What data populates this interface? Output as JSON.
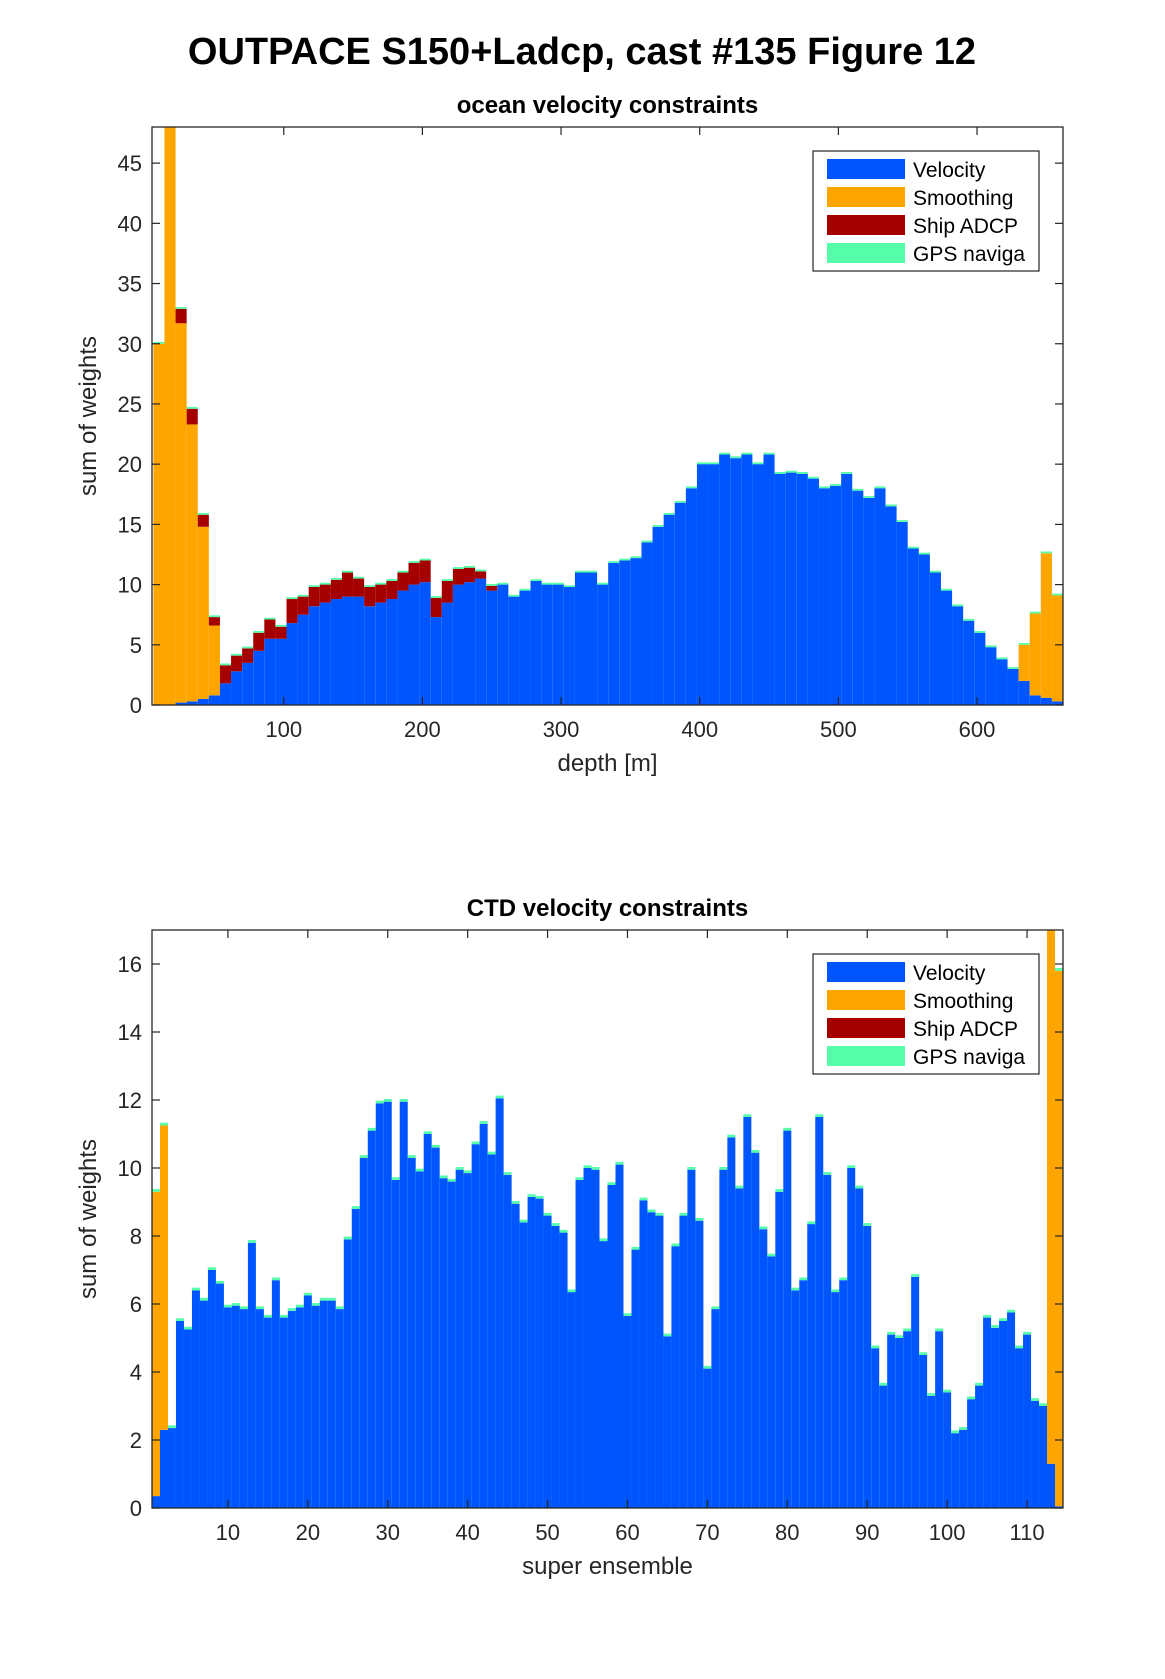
{
  "figure_title": "OUTPACE S150+Ladcp, cast #135  Figure 12",
  "colors": {
    "velocity": "#0055FF",
    "smoothing": "#FFA500",
    "ship_adcp": "#A50000",
    "gps": "#55FFAA"
  },
  "chart_data": [
    {
      "type": "bar",
      "stacked": true,
      "title": "ocean velocity constraints",
      "xlabel": "depth [m]",
      "ylabel": "sum of weights",
      "xlim": [
        5,
        662
      ],
      "ylim": [
        0,
        48
      ],
      "xticks": [
        100,
        200,
        300,
        400,
        500,
        600
      ],
      "yticks": [
        0,
        5,
        10,
        15,
        20,
        25,
        30,
        35,
        40,
        45
      ],
      "bin_width": 8,
      "grid": false,
      "legend_position": "top-right",
      "legend": [
        "Velocity",
        "Smoothing",
        "Ship ADCP",
        "GPS naviga"
      ],
      "x": [
        10,
        18,
        26,
        34,
        42,
        50,
        58,
        66,
        74,
        82,
        90,
        98,
        106,
        114,
        122,
        130,
        138,
        146,
        154,
        162,
        170,
        178,
        186,
        194,
        202,
        210,
        218,
        226,
        234,
        242,
        250,
        258,
        266,
        274,
        282,
        290,
        298,
        306,
        314,
        322,
        330,
        338,
        346,
        354,
        362,
        370,
        378,
        386,
        394,
        402,
        410,
        418,
        426,
        434,
        442,
        450,
        458,
        466,
        474,
        482,
        490,
        498,
        506,
        514,
        522,
        530,
        538,
        546,
        554,
        562,
        570,
        578,
        586,
        594,
        602,
        610,
        618,
        626,
        634,
        642,
        650,
        658
      ],
      "series": [
        {
          "name": "Velocity",
          "values": [
            0,
            0,
            0.2,
            0.3,
            0.5,
            0.8,
            1.8,
            2.8,
            3.5,
            4.5,
            5.5,
            5.5,
            6.8,
            7.5,
            8.2,
            8.5,
            8.8,
            9.0,
            9.0,
            8.2,
            8.5,
            8.8,
            9.5,
            10.0,
            10.2,
            7.3,
            8.5,
            10.0,
            10.2,
            10.5,
            9.5,
            10.0,
            9.0,
            9.5,
            10.3,
            10.0,
            10.0,
            9.8,
            11.0,
            11.0,
            10.0,
            11.8,
            12.0,
            12.2,
            13.5,
            14.8,
            15.8,
            16.8,
            18.0,
            20.0,
            20.0,
            20.8,
            20.5,
            20.8,
            20.0,
            20.8,
            19.2,
            19.3,
            19.2,
            18.8,
            18.0,
            18.2,
            19.2,
            17.8,
            17.2,
            18.0,
            16.5,
            15.2,
            13.0,
            12.5,
            11.0,
            9.5,
            8.2,
            7.0,
            6.0,
            4.8,
            3.8,
            3.0,
            2.0,
            0.8,
            0.6,
            0.3
          ]
        },
        {
          "name": "Smoothing",
          "values": [
            30.0,
            48.0,
            31.5,
            23.0,
            14.3,
            5.8,
            0,
            0,
            0,
            0,
            0,
            0,
            0,
            0,
            0,
            0,
            0,
            0,
            0,
            0,
            0,
            0,
            0,
            0,
            0,
            0,
            0,
            0,
            0,
            0,
            0,
            0,
            0,
            0,
            0,
            0,
            0,
            0,
            0,
            0,
            0,
            0,
            0,
            0,
            0,
            0,
            0,
            0,
            0,
            0,
            0,
            0,
            0,
            0,
            0,
            0,
            0,
            0,
            0,
            0,
            0,
            0,
            0,
            0,
            0,
            0,
            0,
            0,
            0,
            0,
            0,
            0,
            0,
            0,
            0,
            0,
            0,
            0,
            3.0,
            6.8,
            12.0,
            8.8
          ]
        },
        {
          "name": "Ship ADCP",
          "values": [
            0,
            0,
            1.2,
            1.3,
            1.0,
            0.7,
            1.5,
            1.3,
            1.2,
            1.5,
            1.6,
            1.0,
            2.0,
            1.5,
            1.6,
            1.5,
            1.6,
            2.0,
            1.5,
            1.6,
            1.5,
            1.5,
            1.5,
            1.8,
            1.8,
            1.6,
            1.8,
            1.3,
            1.2,
            0.6,
            0.4,
            0,
            0,
            0,
            0,
            0,
            0,
            0,
            0,
            0,
            0,
            0,
            0,
            0,
            0,
            0,
            0,
            0,
            0,
            0,
            0,
            0,
            0,
            0,
            0,
            0,
            0,
            0,
            0,
            0,
            0,
            0,
            0,
            0,
            0,
            0,
            0,
            0,
            0,
            0,
            0,
            0,
            0,
            0,
            0,
            0,
            0,
            0,
            0,
            0,
            0,
            0
          ]
        },
        {
          "name": "GPS naviga",
          "values": [
            0.15,
            0.15,
            0.15,
            0.15,
            0.15,
            0.15,
            0.15,
            0.15,
            0.15,
            0.15,
            0.15,
            0.15,
            0.15,
            0.15,
            0.15,
            0.15,
            0.15,
            0.15,
            0.15,
            0.15,
            0.15,
            0.15,
            0.15,
            0.15,
            0.15,
            0.15,
            0.15,
            0.15,
            0.15,
            0.15,
            0.15,
            0.15,
            0.15,
            0.15,
            0.15,
            0.15,
            0.15,
            0.15,
            0.15,
            0.15,
            0.15,
            0.15,
            0.15,
            0.15,
            0.15,
            0.15,
            0.15,
            0.15,
            0.15,
            0.15,
            0.15,
            0.15,
            0.15,
            0.15,
            0.15,
            0.15,
            0.15,
            0.15,
            0.15,
            0.15,
            0.15,
            0.15,
            0.15,
            0.15,
            0.15,
            0.15,
            0.15,
            0.15,
            0.15,
            0.15,
            0.15,
            0.15,
            0.15,
            0.15,
            0.15,
            0.15,
            0.15,
            0.15,
            0.15,
            0.15,
            0.15,
            0.15
          ]
        }
      ]
    },
    {
      "type": "bar",
      "stacked": true,
      "title": "CTD velocity constraints",
      "xlabel": "super ensemble",
      "ylabel": "sum of weights",
      "xlim": [
        0.5,
        114.5
      ],
      "ylim": [
        0,
        17
      ],
      "xticks": [
        10,
        20,
        30,
        40,
        50,
        60,
        70,
        80,
        90,
        100,
        110
      ],
      "yticks": [
        0,
        2,
        4,
        6,
        8,
        10,
        12,
        14,
        16
      ],
      "bin_width": 1,
      "grid": false,
      "legend_position": "top-right",
      "legend": [
        "Velocity",
        "Smoothing",
        "Ship ADCP",
        "GPS naviga"
      ],
      "x": [
        1,
        2,
        3,
        4,
        5,
        6,
        7,
        8,
        9,
        10,
        11,
        12,
        13,
        14,
        15,
        16,
        17,
        18,
        19,
        20,
        21,
        22,
        23,
        24,
        25,
        26,
        27,
        28,
        29,
        30,
        31,
        32,
        33,
        34,
        35,
        36,
        37,
        38,
        39,
        40,
        41,
        42,
        43,
        44,
        45,
        46,
        47,
        48,
        49,
        50,
        51,
        52,
        53,
        54,
        55,
        56,
        57,
        58,
        59,
        60,
        61,
        62,
        63,
        64,
        65,
        66,
        67,
        68,
        69,
        70,
        71,
        72,
        73,
        74,
        75,
        76,
        77,
        78,
        79,
        80,
        81,
        82,
        83,
        84,
        85,
        86,
        87,
        88,
        89,
        90,
        91,
        92,
        93,
        94,
        95,
        96,
        97,
        98,
        99,
        100,
        101,
        102,
        103,
        104,
        105,
        106,
        107,
        108,
        109,
        110,
        111,
        112,
        113,
        114
      ],
      "series": [
        {
          "name": "Velocity",
          "values": [
            0.35,
            2.3,
            2.35,
            5.5,
            5.25,
            6.4,
            6.1,
            7.0,
            6.6,
            5.9,
            5.95,
            5.85,
            7.8,
            5.85,
            5.6,
            6.7,
            5.6,
            5.8,
            5.9,
            6.25,
            5.95,
            6.1,
            6.1,
            5.85,
            7.9,
            8.8,
            10.3,
            11.1,
            11.9,
            11.95,
            9.65,
            11.95,
            10.3,
            9.9,
            11.0,
            10.6,
            9.7,
            9.6,
            9.95,
            9.85,
            10.7,
            11.3,
            10.4,
            12.05,
            9.8,
            8.95,
            8.4,
            9.15,
            9.1,
            8.6,
            8.3,
            8.1,
            6.35,
            9.65,
            10.0,
            9.95,
            7.85,
            9.5,
            10.1,
            5.65,
            7.6,
            9.05,
            8.7,
            8.6,
            5.05,
            7.7,
            8.6,
            9.95,
            8.45,
            4.1,
            5.85,
            9.95,
            10.9,
            9.4,
            11.5,
            10.45,
            8.2,
            7.4,
            9.3,
            11.1,
            6.4,
            6.7,
            8.35,
            11.5,
            9.8,
            6.35,
            6.7,
            10.0,
            9.4,
            8.3,
            4.7,
            3.6,
            5.1,
            5.0,
            5.2,
            6.8,
            4.5,
            3.3,
            5.2,
            3.4,
            2.2,
            2.3,
            3.2,
            3.6,
            5.6,
            5.3,
            5.5,
            5.75,
            4.7,
            5.1,
            3.15,
            3.0,
            1.3,
            0.05
          ]
        },
        {
          "name": "Smoothing",
          "values": [
            8.95,
            8.95,
            0,
            0,
            0,
            0,
            0,
            0,
            0,
            0,
            0,
            0,
            0,
            0,
            0,
            0,
            0,
            0,
            0,
            0,
            0,
            0,
            0,
            0,
            0,
            0,
            0,
            0,
            0,
            0,
            0,
            0,
            0,
            0,
            0,
            0,
            0,
            0,
            0,
            0,
            0,
            0,
            0,
            0,
            0,
            0,
            0,
            0,
            0,
            0,
            0,
            0,
            0,
            0,
            0,
            0,
            0,
            0,
            0,
            0,
            0,
            0,
            0,
            0,
            0,
            0,
            0,
            0,
            0,
            0,
            0,
            0,
            0,
            0,
            0,
            0,
            0,
            0,
            0,
            0,
            0,
            0,
            0,
            0,
            0,
            0,
            0,
            0,
            0,
            0,
            0,
            0,
            0,
            0,
            0,
            0,
            0,
            0,
            0,
            0,
            0,
            0,
            0,
            0,
            0,
            0,
            0,
            0,
            0,
            0,
            0,
            0,
            15.7,
            15.75
          ]
        },
        {
          "name": "Ship ADCP",
          "values": [
            0,
            0,
            0,
            0,
            0,
            0,
            0,
            0,
            0,
            0,
            0,
            0,
            0,
            0,
            0,
            0,
            0,
            0,
            0,
            0,
            0,
            0,
            0,
            0,
            0,
            0,
            0,
            0,
            0,
            0,
            0,
            0,
            0,
            0,
            0,
            0,
            0,
            0,
            0,
            0,
            0,
            0,
            0,
            0,
            0,
            0,
            0,
            0,
            0,
            0,
            0,
            0,
            0,
            0,
            0,
            0,
            0,
            0,
            0,
            0,
            0,
            0,
            0,
            0,
            0,
            0,
            0,
            0,
            0,
            0,
            0,
            0,
            0,
            0,
            0,
            0,
            0,
            0,
            0,
            0,
            0,
            0,
            0,
            0,
            0,
            0,
            0,
            0,
            0,
            0,
            0,
            0,
            0,
            0,
            0,
            0,
            0,
            0,
            0,
            0,
            0,
            0,
            0,
            0,
            0,
            0,
            0,
            0,
            0,
            0,
            0,
            0,
            0,
            0
          ]
        },
        {
          "name": "GPS naviga",
          "values": [
            0.08,
            0.08,
            0.08,
            0.08,
            0.08,
            0.08,
            0.08,
            0.08,
            0.08,
            0.08,
            0.08,
            0.08,
            0.08,
            0.08,
            0.08,
            0.08,
            0.08,
            0.08,
            0.08,
            0.08,
            0.08,
            0.08,
            0.08,
            0.08,
            0.08,
            0.08,
            0.08,
            0.08,
            0.08,
            0.08,
            0.08,
            0.08,
            0.08,
            0.08,
            0.08,
            0.08,
            0.08,
            0.08,
            0.08,
            0.08,
            0.08,
            0.08,
            0.08,
            0.08,
            0.08,
            0.08,
            0.08,
            0.08,
            0.08,
            0.08,
            0.08,
            0.08,
            0.08,
            0.08,
            0.08,
            0.08,
            0.08,
            0.08,
            0.08,
            0.08,
            0.08,
            0.08,
            0.08,
            0.08,
            0.08,
            0.08,
            0.08,
            0.08,
            0.08,
            0.08,
            0.08,
            0.08,
            0.08,
            0.08,
            0.08,
            0.08,
            0.08,
            0.08,
            0.08,
            0.08,
            0.08,
            0.08,
            0.08,
            0.08,
            0.08,
            0.08,
            0.08,
            0.08,
            0.08,
            0.08,
            0.08,
            0.08,
            0.08,
            0.08,
            0.08,
            0.08,
            0.08,
            0.08,
            0.08,
            0.08,
            0.08,
            0.08,
            0.08,
            0.08,
            0.08,
            0.08,
            0.08,
            0.08,
            0.08,
            0.08,
            0.08,
            0.08,
            0.08,
            0.08
          ]
        }
      ]
    }
  ]
}
